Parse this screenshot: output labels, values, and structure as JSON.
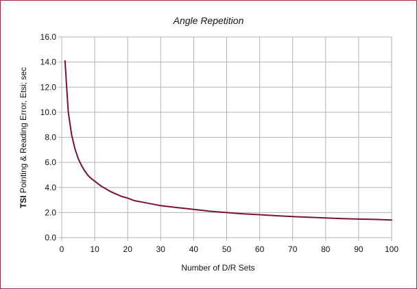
{
  "chart_data": {
    "type": "line",
    "title": "Angle Repetition",
    "xlabel": "Number of  D/R Sets",
    "ylabel_prefix": "TSI",
    "ylabel_rest": " Pointing & Reading Error, Etsi; sec",
    "xlim": [
      0,
      100
    ],
    "ylim": [
      0,
      16
    ],
    "x_ticks": [
      0,
      10,
      20,
      30,
      40,
      50,
      60,
      70,
      80,
      90,
      100
    ],
    "x_tick_labels": [
      "0",
      "10",
      "20",
      "30",
      "40",
      "50",
      "60",
      "70",
      "80",
      "90",
      "100"
    ],
    "y_ticks": [
      0,
      2,
      4,
      6,
      8,
      10,
      12,
      14,
      16
    ],
    "y_tick_labels": [
      "0.0",
      "2.0",
      "4.0",
      "6.0",
      "8.0",
      "10.0",
      "12.0",
      "14.0",
      "16.0"
    ],
    "grid": true,
    "line_color": "#7b1030",
    "series": [
      {
        "x": [
          1,
          1.5,
          2,
          3,
          4,
          5,
          6,
          7,
          8,
          9,
          10,
          12,
          15,
          18,
          20,
          22,
          25,
          30,
          35,
          40,
          45,
          50,
          55,
          60,
          65,
          70,
          75,
          80,
          85,
          90,
          95,
          100
        ],
        "y": [
          14.1,
          12.0,
          10.0,
          8.2,
          7.1,
          6.3,
          5.75,
          5.3,
          4.95,
          4.7,
          4.5,
          4.1,
          3.65,
          3.3,
          3.15,
          2.95,
          2.8,
          2.55,
          2.4,
          2.25,
          2.1,
          2.0,
          1.9,
          1.83,
          1.75,
          1.68,
          1.62,
          1.57,
          1.52,
          1.48,
          1.45,
          1.41
        ]
      }
    ]
  }
}
